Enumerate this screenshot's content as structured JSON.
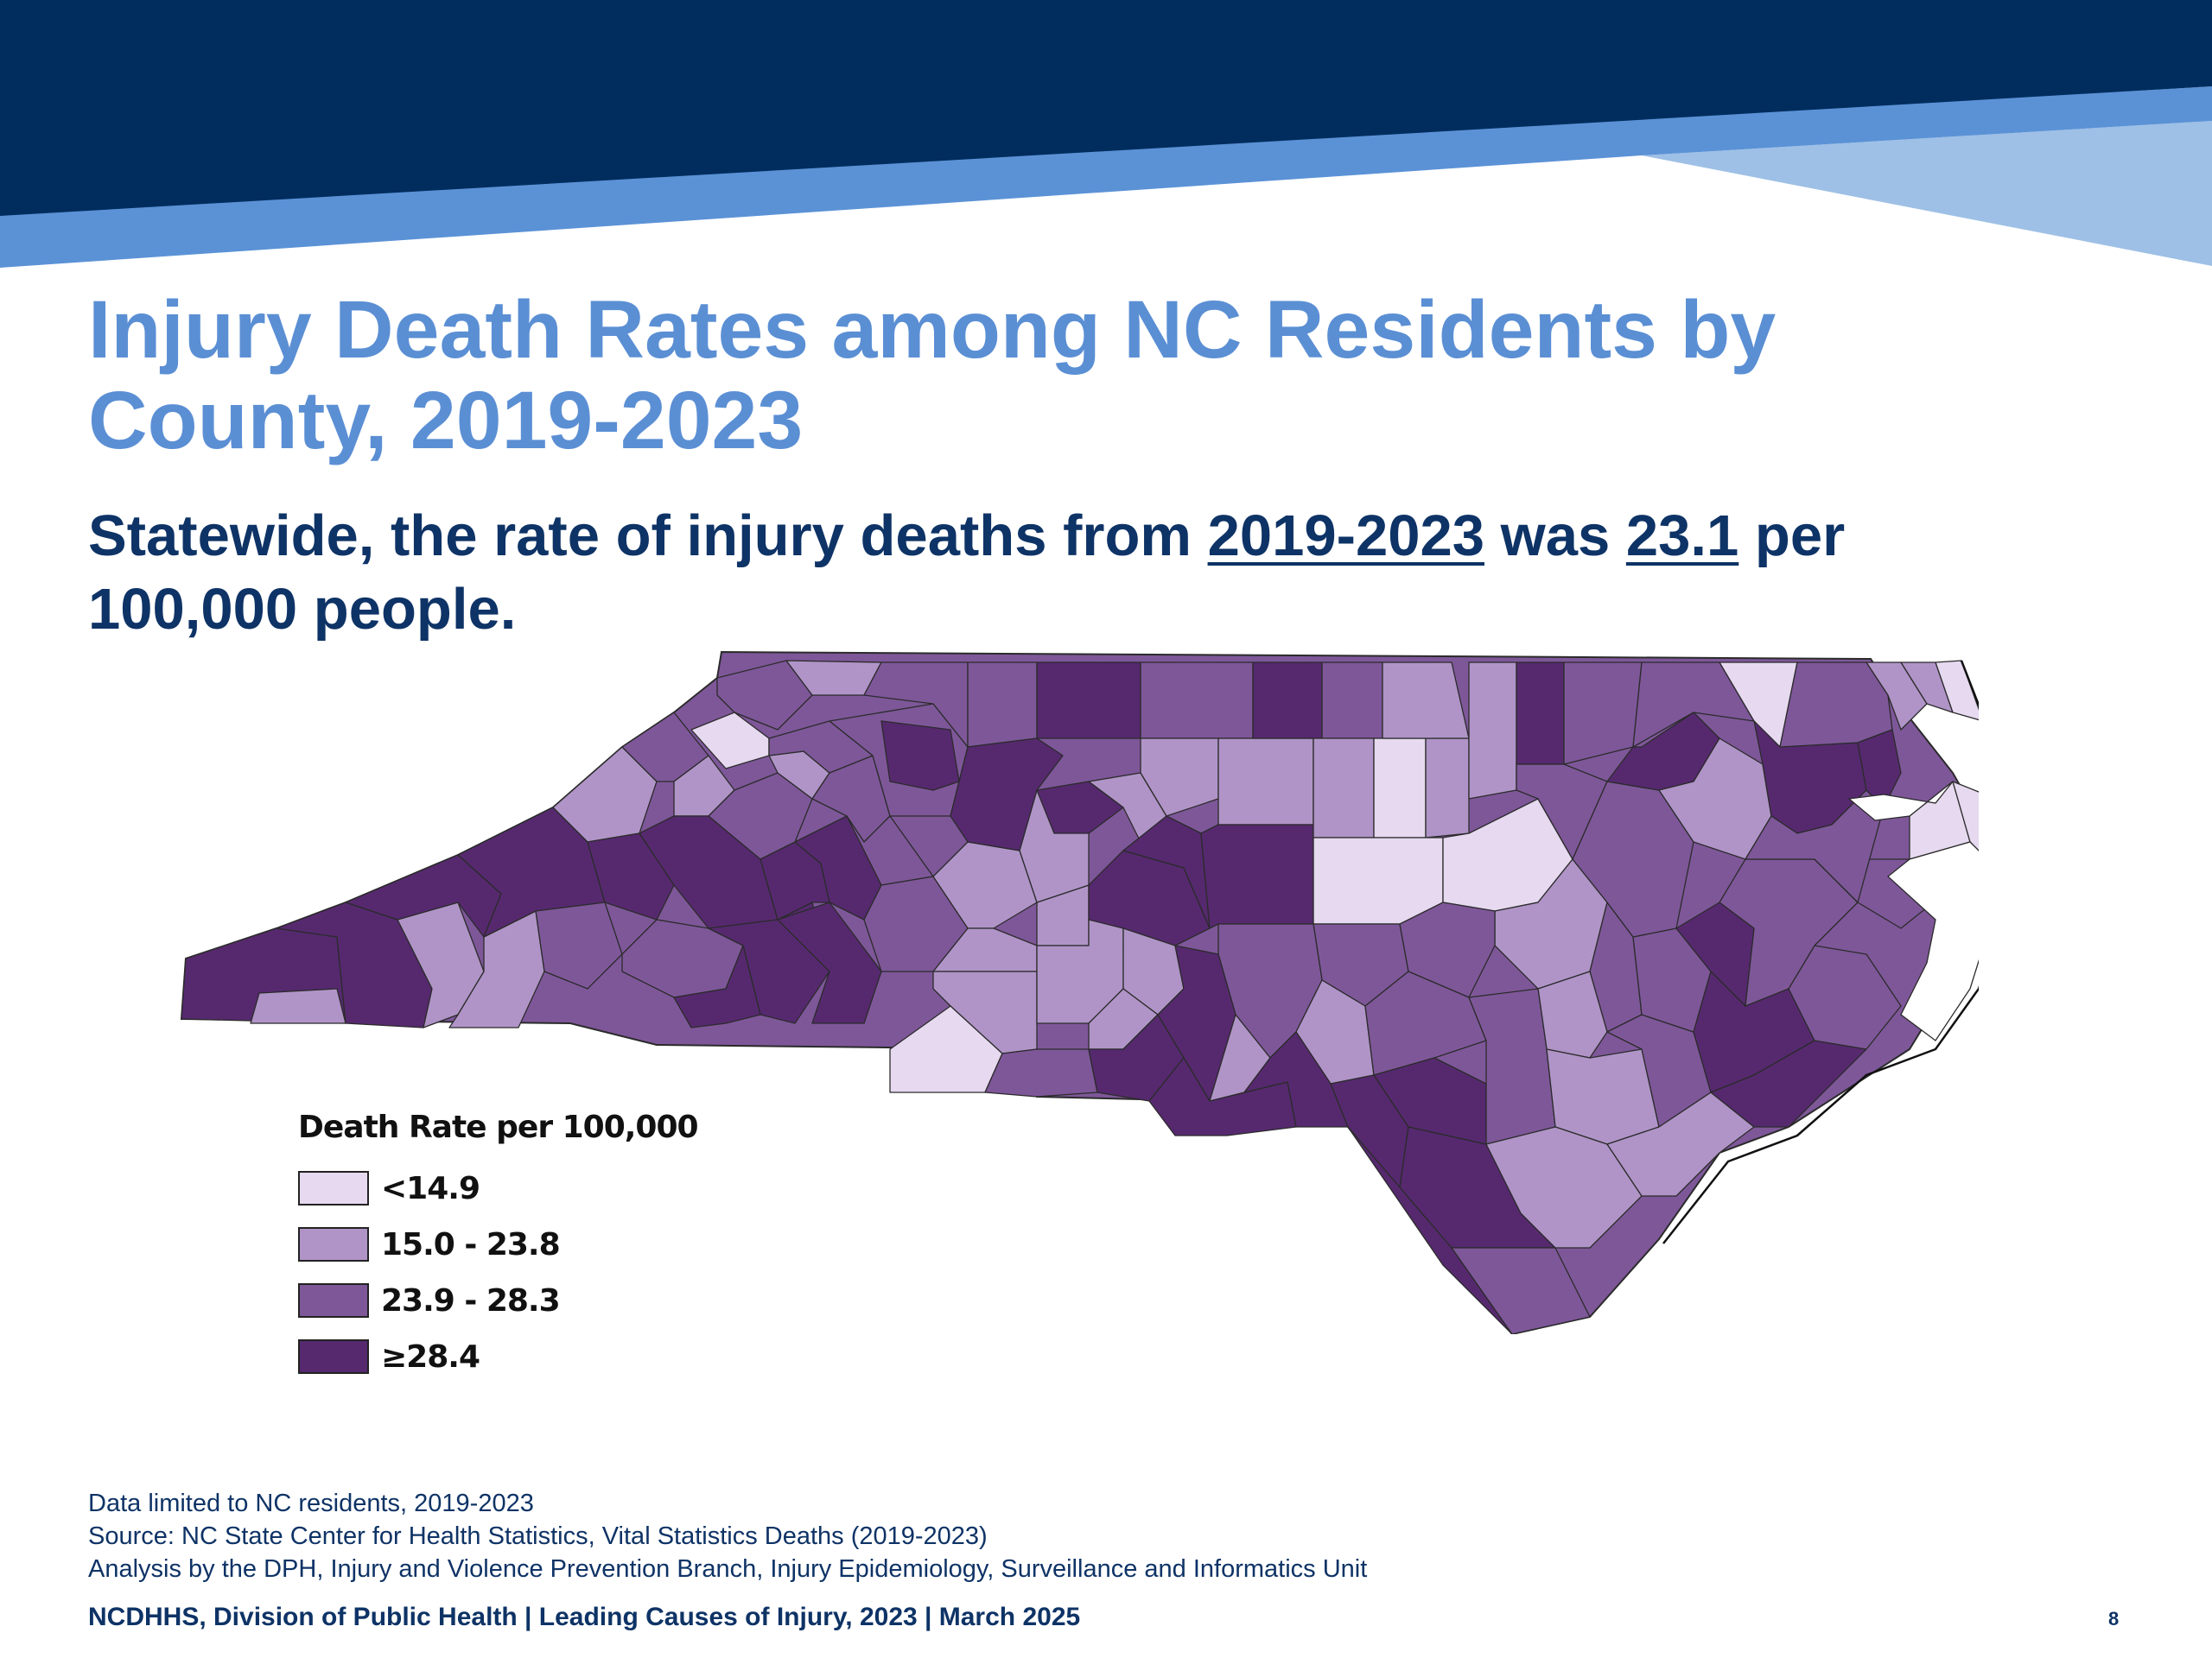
{
  "colors": {
    "header_navy": "#002d5e",
    "header_blue": "#5b92d6",
    "header_light_blue": "#9ec0e6",
    "title": "#5b8fd4",
    "text": "#0e3366"
  },
  "slide": {
    "title": "Injury Death Rates among NC Residents by County, 2019-2023",
    "subtitle": {
      "prefix": "Statewide, the rate of injury deaths from ",
      "period": "2019-2023",
      "middle": " was ",
      "rate": "23.1",
      "suffix": " per 100,000 people."
    }
  },
  "map": {
    "region": "North Carolina counties",
    "legend": {
      "title": "Death Rate per 100,000",
      "items": [
        {
          "label": "<14.9",
          "color": "#e6d9f0"
        },
        {
          "label": "15.0 - 23.8",
          "color": "#b094c7"
        },
        {
          "label": "23.9 - 28.3",
          "color": "#7e5799"
        },
        {
          "label": "≥28.4",
          "color": "#56296f"
        }
      ]
    }
  },
  "footnotes": [
    "Data limited to NC residents, 2019-2023",
    "Source: NC State Center for Health Statistics, Vital Statistics Deaths (2019-2023)",
    "Analysis by the DPH, Injury and Violence Prevention Branch, Injury Epidemiology, Surveillance and Informatics Unit"
  ],
  "footer": {
    "text": "NCDHHS, Division of Public Health | Leading Causes of Injury, 2023 | March 2025",
    "page_number": "8"
  }
}
